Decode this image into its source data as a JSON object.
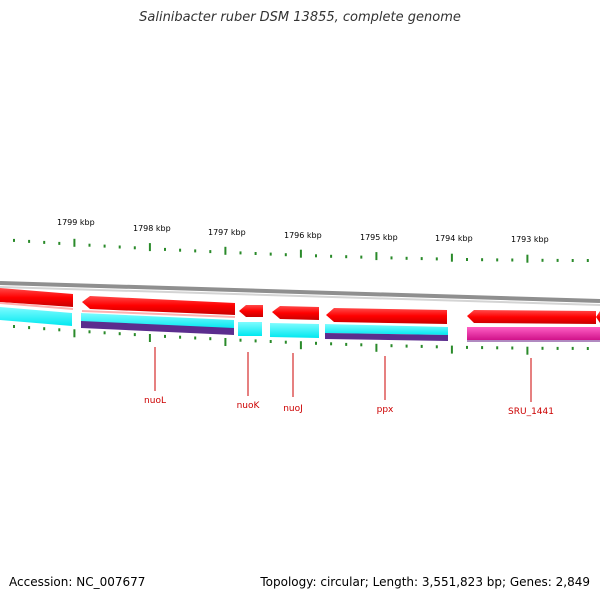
{
  "title": "Salinibacter ruber DSM 13855, complete genome",
  "accession": "Accession: NC_007677",
  "summary": "Topology: circular; Length: 3,551,823 bp; Genes: 2,849",
  "colors": {
    "backbone": "#8f8f8f",
    "forward_gene": "#ff0000",
    "reverse_gene": "#ff0000",
    "cds_track": "#00ffff",
    "cds_track_2": "#5b2d8e",
    "rna_track": "#e0209a",
    "ticks": "#2a8a2a",
    "labels": "#cc0000"
  },
  "scale_labels": [
    "1799 kbp",
    "1798 kbp",
    "1797 kbp",
    "1796 kbp",
    "1795 kbp",
    "1794 kbp",
    "1793 kbp"
  ],
  "gene_labels": [
    "nuoL",
    "nuoK",
    "nuoJ",
    "ppx",
    "SRU_1441"
  ]
}
